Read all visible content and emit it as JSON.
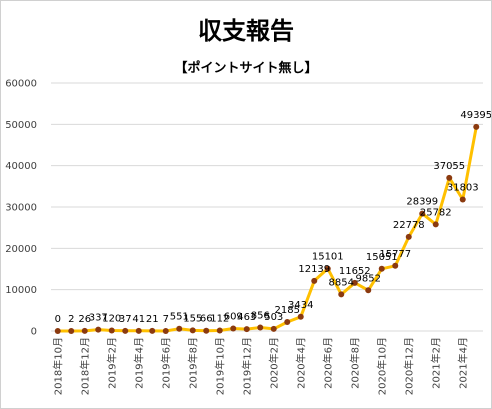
{
  "chart_data": {
    "type": "line",
    "title": "収支報告",
    "subtitle": "【ポイントサイト無し】",
    "ylim": [
      0,
      60000
    ],
    "yticks": [
      0,
      10000,
      20000,
      30000,
      40000,
      50000,
      60000
    ],
    "grid": "horizontal",
    "legend": "none",
    "colors": {
      "line": "#FFC000",
      "marker": "#8B3A0F",
      "grid": "#d9d9d9"
    },
    "x": [
      "2018年10月",
      "2018年11月",
      "2018年12月",
      "2019年1月",
      "2019年2月",
      "2019年3月",
      "2019年4月",
      "2019年5月",
      "2019年6月",
      "2019年7月",
      "2019年8月",
      "2019年9月",
      "2019年10月",
      "2019年11月",
      "2019年12月",
      "2020年1月",
      "2020年2月",
      "2020年3月",
      "2020年4月",
      "2020年5月",
      "2020年6月",
      "2020年7月",
      "2020年8月",
      "2020年9月",
      "2020年10月",
      "2020年11月",
      "2020年12月",
      "2021年1月",
      "2021年2月",
      "2021年3月",
      "2021年4月",
      "2021年5月"
    ],
    "x_tick_labels": [
      "2018年10月",
      "2018年12月",
      "2019年2月",
      "2019年4月",
      "2019年6月",
      "2019年8月",
      "2019年10月",
      "2019年12月",
      "2020年2月",
      "2020年4月",
      "2020年6月",
      "2020年8月",
      "2020年10月",
      "2020年12月",
      "2021年2月",
      "2021年4月"
    ],
    "values": [
      0,
      2,
      26,
      337,
      120,
      37,
      41,
      21,
      7,
      551,
      155,
      66,
      112,
      609,
      463,
      856,
      503,
      2185,
      3434,
      12139,
      15101,
      8854,
      11652,
      9852,
      15051,
      15777,
      22778,
      28399,
      25782,
      37055,
      31803,
      49395
    ],
    "data_labels": [
      "0",
      "2",
      "26",
      "337",
      "120",
      "37",
      "41",
      "21",
      "7",
      "551",
      "155",
      "66",
      "112",
      "609",
      "463",
      "856",
      "503",
      "2185",
      "3434",
      "12139",
      "15101",
      "8854",
      "11652",
      "9852",
      "15051",
      "15777",
      "22778",
      "28399",
      "25782",
      "37055",
      "31803",
      "49395"
    ]
  }
}
